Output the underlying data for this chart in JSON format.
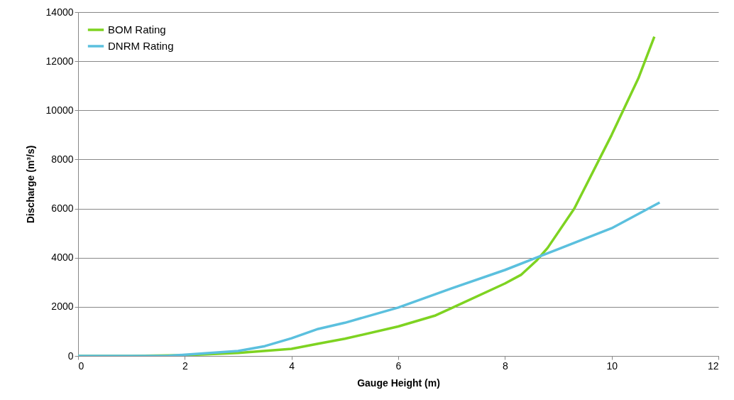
{
  "chart_data": {
    "type": "line",
    "xlabel": "Gauge Height (m)",
    "ylabel": "Discharge (m³/s)",
    "xlim": [
      0,
      12
    ],
    "xticks": [
      0,
      2,
      4,
      6,
      8,
      10,
      12
    ],
    "ylim": [
      0,
      14000
    ],
    "yticks": [
      0,
      2000,
      4000,
      6000,
      8000,
      10000,
      12000,
      14000
    ],
    "grid": "y",
    "legend": "top left",
    "line_style": "solid",
    "marker": "none",
    "series": [
      {
        "name": "BOM Rating",
        "color": "#7ed321",
        "x": [
          0,
          1,
          2,
          3,
          4,
          4.5,
          5,
          6,
          6.7,
          7,
          8,
          8.3,
          8.6,
          8.8,
          9.3,
          10,
          10.5,
          10.8
        ],
        "values": [
          0,
          0,
          30,
          120,
          290,
          500,
          700,
          1200,
          1650,
          1950,
          2950,
          3300,
          3900,
          4400,
          6000,
          9000,
          11300,
          13000
        ]
      },
      {
        "name": "DNRM Rating",
        "color": "#5bc0de",
        "x": [
          0,
          1,
          1.7,
          2,
          3,
          3.5,
          4,
          4.5,
          5,
          6,
          7,
          8,
          9,
          10,
          10.9
        ],
        "values": [
          0,
          0,
          10,
          50,
          200,
          400,
          720,
          1100,
          1350,
          1970,
          2750,
          3500,
          4350,
          5200,
          6250
        ]
      }
    ]
  }
}
